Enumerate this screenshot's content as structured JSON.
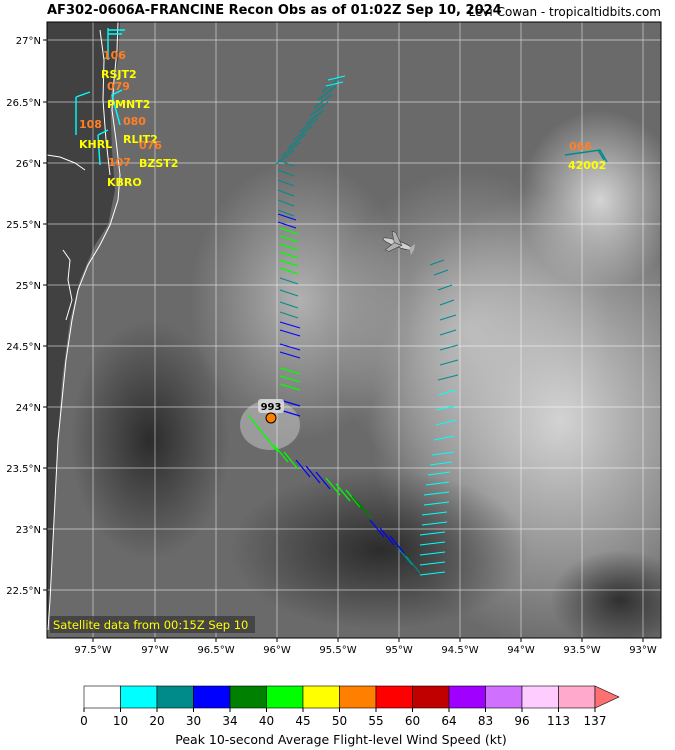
{
  "header": {
    "title": "AF302-0606A-FRANCINE Recon Obs as of 01:02Z Sep 10, 2024",
    "credit": "Levi Cowan - tropicaltidbits.com"
  },
  "map": {
    "lat_labels": [
      "27°N",
      "26.5°N",
      "26°N",
      "25.5°N",
      "25°N",
      "24.5°N",
      "24°N",
      "23.5°N",
      "23°N",
      "22.5°N"
    ],
    "lon_labels": [
      "97.5°W",
      "97°W",
      "96.5°W",
      "96°W",
      "95.5°W",
      "95°W",
      "94.5°W",
      "94°W",
      "93.5°W",
      "93°W"
    ],
    "satellite_note": "Satellite data from 00:15Z Sep 10",
    "center_pressure": "993",
    "stations": [
      {
        "id": "RSJT2",
        "value": "106"
      },
      {
        "id": "PMNT2",
        "value": "079"
      },
      {
        "id": "KHRL",
        "value": "108"
      },
      {
        "id": "RLIT2",
        "value": "080"
      },
      {
        "id": "BZST2",
        "value": "076"
      },
      {
        "id": "KBRO",
        "value": "107"
      },
      {
        "id": "42002",
        "value": "066"
      }
    ]
  },
  "colorbar": {
    "label": "Peak 10-second Average Flight-level Wind Speed (kt)",
    "ticks": [
      "0",
      "10",
      "20",
      "30",
      "34",
      "40",
      "45",
      "50",
      "55",
      "60",
      "64",
      "83",
      "96",
      "113",
      "137"
    ],
    "colors": [
      "#ffffff",
      "#00ffff",
      "#008b8b",
      "#0000ff",
      "#008000",
      "#00ff00",
      "#ffff00",
      "#ff8000",
      "#ff0000",
      "#c00000",
      "#a000ff",
      "#d070ff",
      "#ffccff",
      "#ffaacc",
      "#ff7070"
    ]
  }
}
